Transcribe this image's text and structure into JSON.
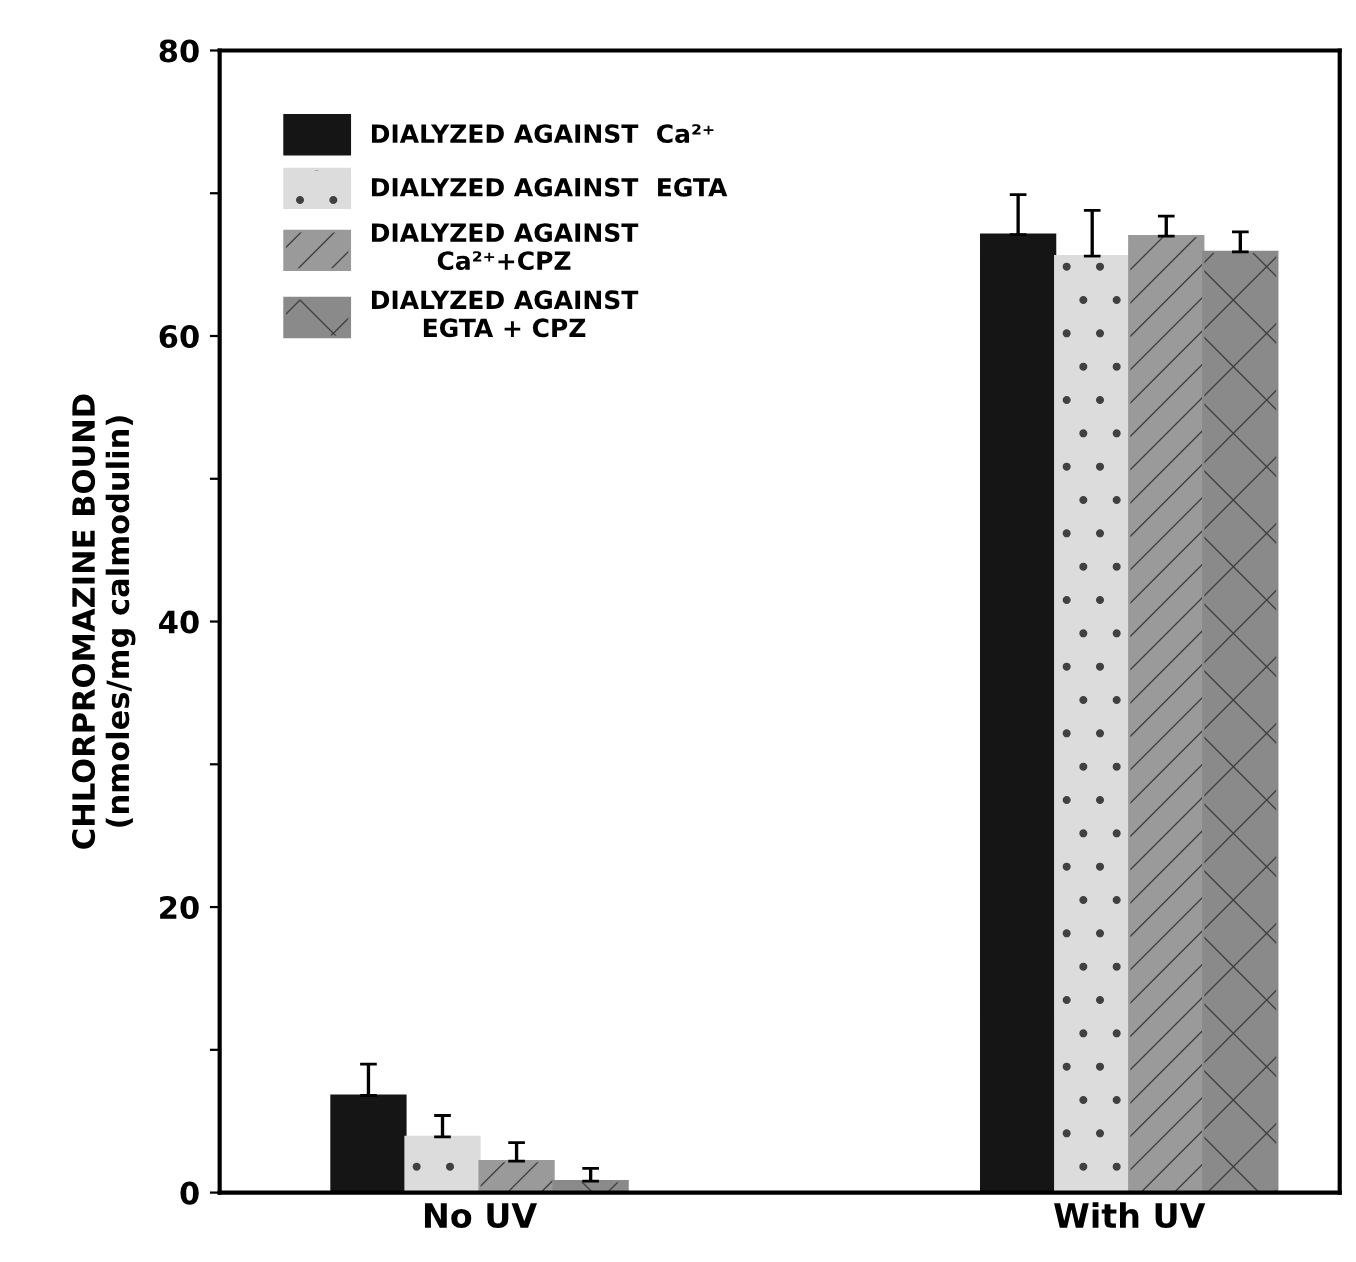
{
  "chart_data": {
    "type": "bar",
    "ylabel": "CHLORPROMAZINE BOUND\n(nmoles/mg calmodulin)",
    "categories": [
      "No UV",
      "With UV"
    ],
    "series": [
      {
        "name": "DIALYZED AGAINST  Ca²⁺",
        "color": "#151515",
        "values": [
          6.8,
          67.1
        ],
        "errors": [
          [
            6.8,
            9.0
          ],
          [
            67.1,
            69.9
          ]
        ]
      },
      {
        "name": "DIALYZED AGAINST  EGTA",
        "color": "#dcdcdc",
        "values": [
          3.9,
          65.6
        ],
        "errors": [
          [
            3.9,
            5.4
          ],
          [
            65.6,
            68.8
          ]
        ]
      },
      {
        "name": "DIALYZED AGAINST\nCa²⁺+CPZ",
        "color": "#9a9a9a",
        "values": [
          2.2,
          67.0
        ],
        "errors": [
          [
            2.2,
            3.5
          ],
          [
            67.0,
            68.4
          ]
        ]
      },
      {
        "name": "DIALYZED AGAINST\nEGTA + CPZ",
        "color": "#8a8a8a",
        "values": [
          0.8,
          65.9
        ],
        "errors": [
          [
            0.8,
            1.7
          ],
          [
            65.9,
            67.3
          ]
        ]
      }
    ],
    "ylim": [
      0,
      80
    ],
    "yticks": [
      0,
      {
        "value": 10,
        "label": null
      },
      20,
      {
        "value": 30,
        "label": null
      },
      40,
      {
        "value": 50,
        "label": null
      },
      60,
      {
        "value": 70,
        "label": null
      },
      80
    ],
    "grid": false,
    "legend": "top left"
  }
}
